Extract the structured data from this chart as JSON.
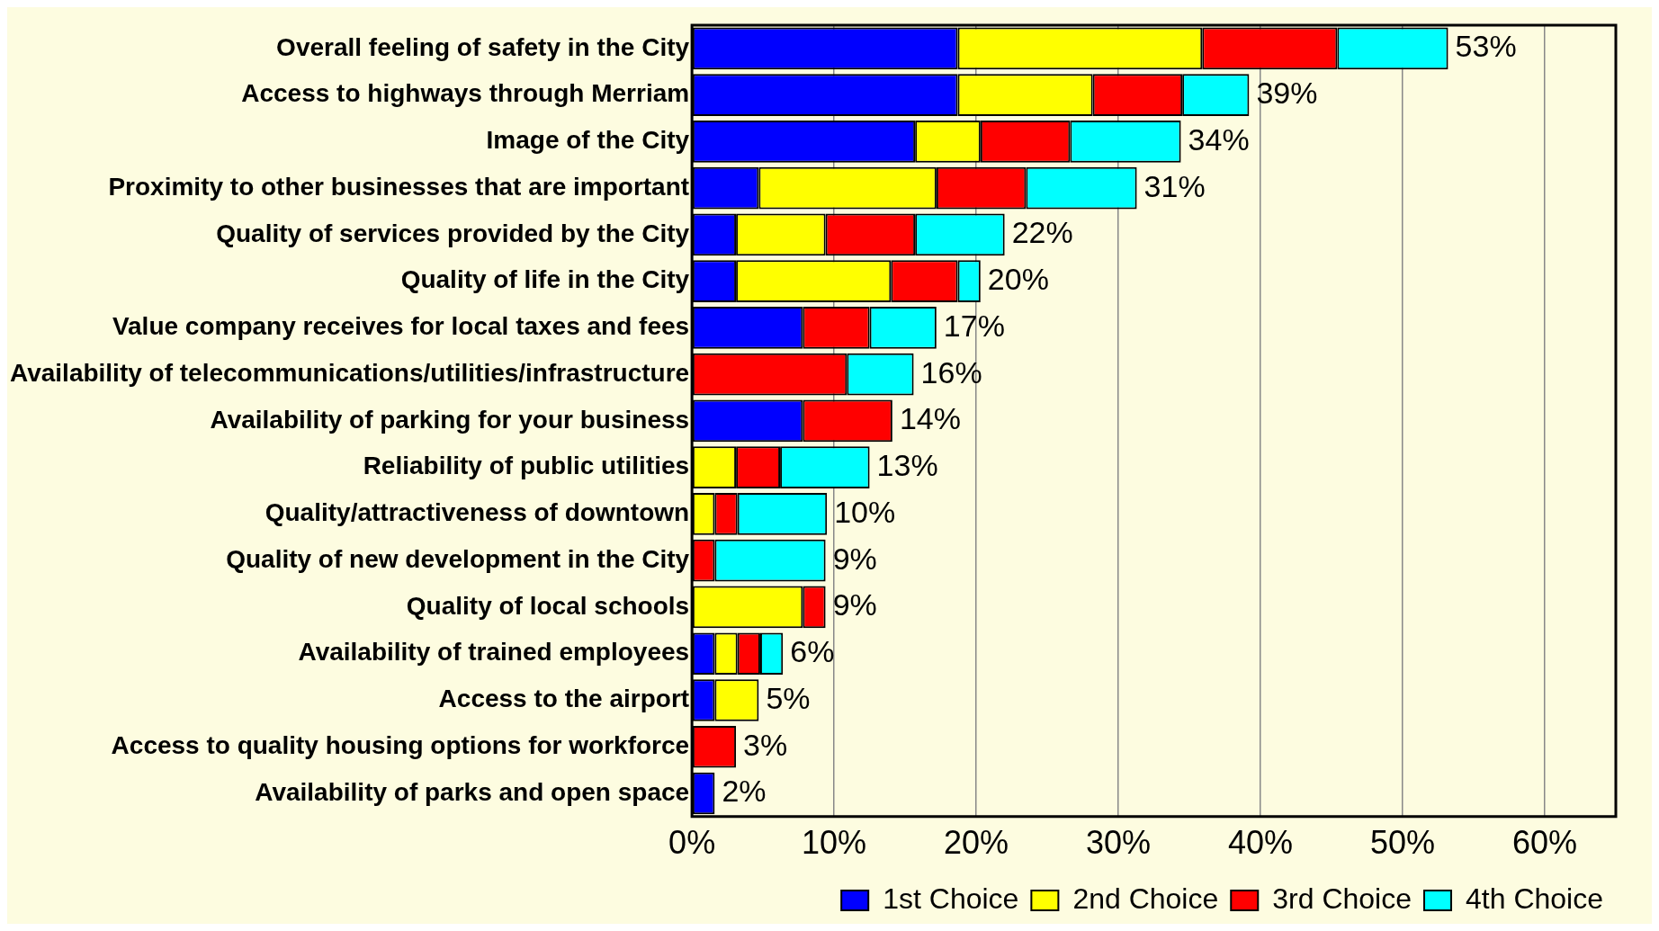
{
  "chart_data": {
    "type": "bar",
    "orientation": "horizontal",
    "stacked": true,
    "categories": [
      "Overall feeling of safety in the City",
      "Access to highways through Merriam",
      "Image of the City",
      "Proximity to other businesses that are important",
      "Quality of services provided by the City",
      "Quality of life in the City",
      "Value company receives for local taxes and fees",
      "Availability of telecommunications/utilities/infrastructure",
      "Availability of parking for your business",
      "Reliability of public utilities",
      "Quality/attractiveness of downtown",
      "Quality of new development in the City",
      "Quality of local schools",
      "Availability of trained employees",
      "Access to the airport",
      "Access to quality housing options for workforce",
      "Availability of parks and open space"
    ],
    "series": [
      {
        "name": "1st Choice",
        "color": "#0000ff",
        "values": [
          18.7,
          18.7,
          15.7,
          4.7,
          3.1,
          3.1,
          7.8,
          null,
          7.8,
          null,
          null,
          null,
          null,
          1.6,
          1.6,
          null,
          1.6
        ]
      },
      {
        "name": "2nd Choice",
        "color": "#ffff00",
        "values": [
          17.2,
          9.5,
          4.6,
          12.5,
          6.3,
          10.9,
          null,
          null,
          null,
          3.1,
          1.6,
          null,
          7.8,
          1.6,
          3.1,
          null,
          null
        ]
      },
      {
        "name": "3rd Choice",
        "color": "#ff0000",
        "values": [
          9.5,
          6.3,
          6.3,
          6.3,
          6.3,
          4.7,
          4.7,
          10.9,
          6.3,
          3.1,
          1.6,
          1.6,
          1.6,
          1.6,
          null,
          3.1,
          null
        ]
      },
      {
        "name": "4th Choice",
        "color": "#00ffff",
        "values": [
          7.8,
          4.7,
          7.8,
          7.8,
          6.3,
          1.6,
          4.7,
          4.7,
          null,
          6.3,
          6.3,
          7.8,
          null,
          1.6,
          null,
          null,
          null
        ]
      }
    ],
    "totals": [
      "53%",
      "39%",
      "34%",
      "31%",
      "22%",
      "20%",
      "17%",
      "16%",
      "14%",
      "13%",
      "10%",
      "9%",
      "9%",
      "6%",
      "5%",
      "3%",
      "2%"
    ],
    "xlim": [
      0,
      65
    ],
    "xticks": [
      {
        "value": 0,
        "label": "0%"
      },
      {
        "value": 10,
        "label": "10%"
      },
      {
        "value": 20,
        "label": "20%"
      },
      {
        "value": 30,
        "label": "30%"
      },
      {
        "value": 40,
        "label": "40%"
      },
      {
        "value": 50,
        "label": "50%"
      },
      {
        "value": 60,
        "label": "60%"
      }
    ],
    "grid": "x",
    "legend": "bottom"
  }
}
